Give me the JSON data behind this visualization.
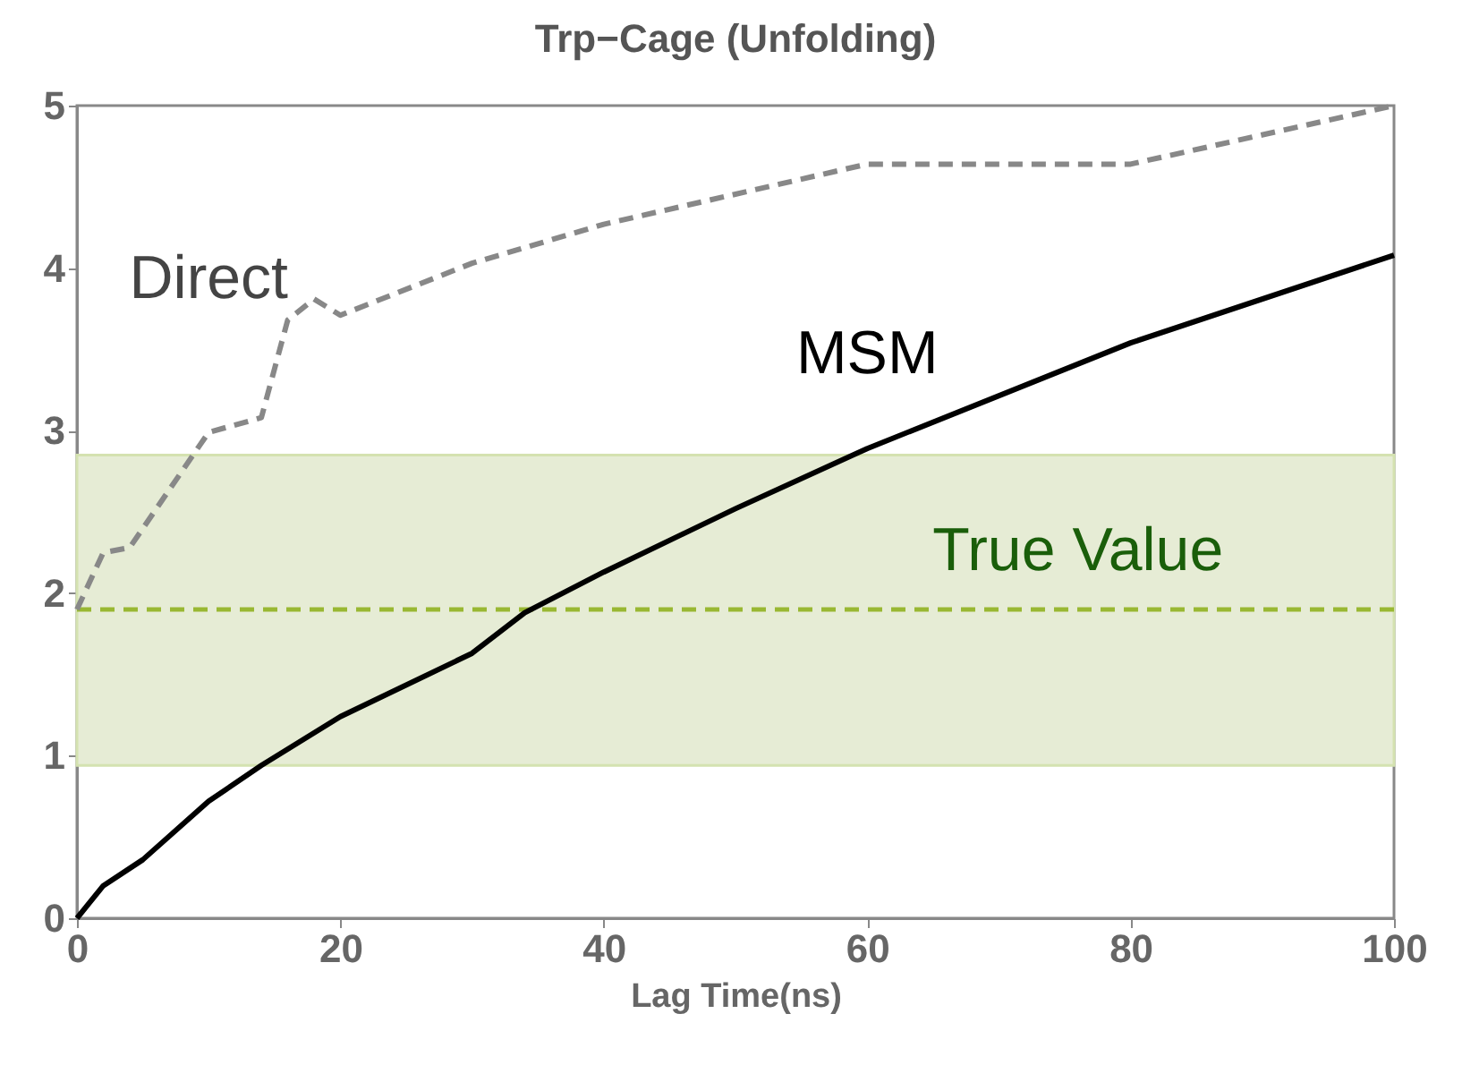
{
  "chart_data": {
    "type": "line",
    "title": "Trp−Cage (Unfolding)",
    "xlabel": "Lag Time(ns)",
    "xlim": [
      0,
      100
    ],
    "ylim": [
      0,
      5
    ],
    "xticks": [
      0,
      20,
      40,
      60,
      80,
      100
    ],
    "yticks": [
      0,
      1,
      2,
      3,
      4,
      5
    ],
    "grid": false,
    "marker": "none",
    "series": [
      {
        "name": "Direct",
        "color": "#888888",
        "line_style": "dashed",
        "x": [
          0,
          2,
          4,
          10,
          14,
          16,
          18,
          20,
          30,
          40,
          60,
          80,
          100
        ],
        "values": [
          1.9,
          2.25,
          2.28,
          2.99,
          3.08,
          3.68,
          3.81,
          3.71,
          4.03,
          4.27,
          4.64,
          4.64,
          5.0
        ]
      },
      {
        "name": "MSM",
        "color": "#000000",
        "line_style": "solid",
        "x": [
          0,
          2,
          5,
          10,
          14,
          20,
          30,
          34,
          40,
          50,
          60,
          80,
          100
        ],
        "values": [
          0,
          0.2,
          0.36,
          0.72,
          0.94,
          1.24,
          1.63,
          1.88,
          2.13,
          2.52,
          2.89,
          3.54,
          4.08
        ]
      }
    ],
    "ref_lines": [
      {
        "axis": "y",
        "value": 1.9,
        "label": "True Value",
        "color": "#99b833",
        "line_style": "dashed"
      }
    ],
    "bands": [
      {
        "axis": "y",
        "from": 0.94,
        "to": 2.85,
        "color": "#e6ecd5"
      }
    ]
  }
}
